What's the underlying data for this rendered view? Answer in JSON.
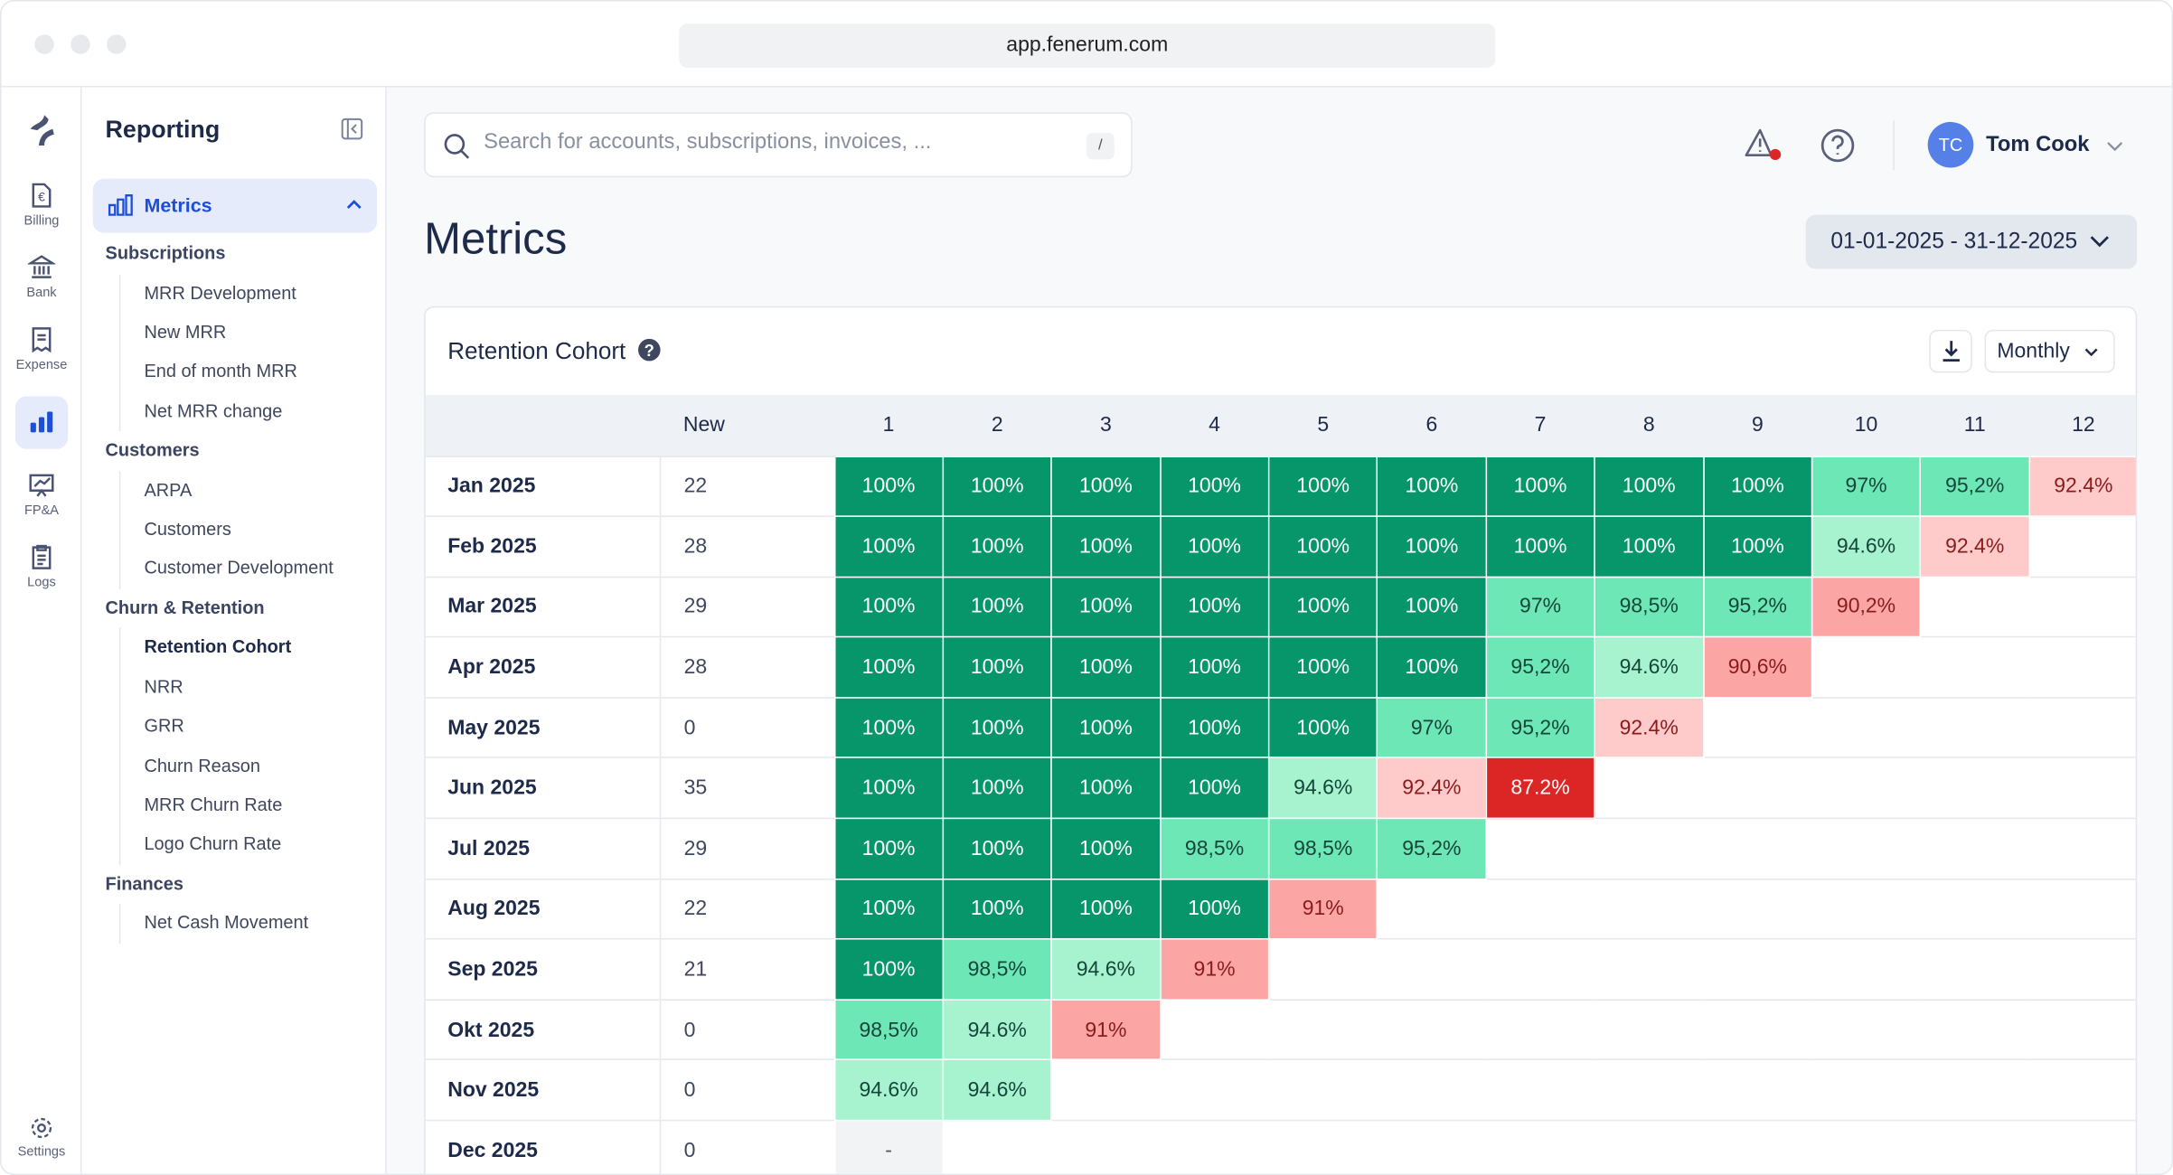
{
  "browser": {
    "url": "app.fenerum.com"
  },
  "rail": [
    {
      "label": "Billing",
      "icon": "receipt-euro-icon"
    },
    {
      "label": "Bank",
      "icon": "bank-icon"
    },
    {
      "label": "Expense",
      "icon": "expense-receipt-icon"
    },
    {
      "label": "",
      "icon": "bar-chart-icon",
      "active": true
    },
    {
      "label": "FP&A",
      "icon": "presentation-chart-icon"
    },
    {
      "label": "Logs",
      "icon": "clipboard-list-icon"
    },
    {
      "label": "Settings",
      "icon": "gear-icon"
    }
  ],
  "sidebar": {
    "title": "Reporting",
    "section": "Metrics",
    "groups": [
      {
        "label": "Subscriptions",
        "items": [
          "MRR Development",
          "New MRR",
          "End of month MRR",
          "Net MRR change"
        ]
      },
      {
        "label": "Customers",
        "items": [
          "ARPA",
          "Customers",
          "Customer Development"
        ]
      },
      {
        "label": "Churn & Retention",
        "items": [
          "Retention Cohort",
          "NRR",
          "GRR",
          "Churn Reason",
          "MRR Churn Rate",
          "Logo Churn Rate"
        ]
      },
      {
        "label": "Finances",
        "items": [
          "Net Cash Movement"
        ]
      }
    ],
    "current": "Retention Cohort"
  },
  "search": {
    "placeholder": "Search for accounts, subscriptions, invoices, ...",
    "shortcut": "/"
  },
  "user": {
    "initials": "TC",
    "name": "Tom Cook"
  },
  "page": {
    "title": "Metrics",
    "date_range": "01-01-2025 - 31-12-2025"
  },
  "cohort": {
    "title": "Retention Cohort",
    "period": "Monthly",
    "colors": {
      "full": "#069669",
      "high": "#6ee7b7",
      "mid": "#a7f3d0",
      "low": "#fecaca",
      "lower": "#fca5a5",
      "critical": "#dc2626",
      "empty": "#f1f3f5"
    },
    "headers": [
      "",
      "New",
      "1",
      "2",
      "3",
      "4",
      "5",
      "6",
      "7",
      "8",
      "9",
      "10",
      "11",
      "12"
    ],
    "rows": [
      {
        "month": "Jan 2025",
        "new": "22",
        "cells": [
          "100%",
          "100%",
          "100%",
          "100%",
          "100%",
          "100%",
          "100%",
          "100%",
          "100%",
          "97%",
          "95,2%",
          "92.4%"
        ]
      },
      {
        "month": "Feb 2025",
        "new": "28",
        "cells": [
          "100%",
          "100%",
          "100%",
          "100%",
          "100%",
          "100%",
          "100%",
          "100%",
          "100%",
          "94.6%",
          "92.4%"
        ]
      },
      {
        "month": "Mar 2025",
        "new": "29",
        "cells": [
          "100%",
          "100%",
          "100%",
          "100%",
          "100%",
          "100%",
          "97%",
          "98,5%",
          "95,2%",
          "90,2%"
        ]
      },
      {
        "month": "Apr 2025",
        "new": "28",
        "cells": [
          "100%",
          "100%",
          "100%",
          "100%",
          "100%",
          "100%",
          "95,2%",
          "94.6%",
          "90,6%"
        ]
      },
      {
        "month": "May 2025",
        "new": "0",
        "cells": [
          "100%",
          "100%",
          "100%",
          "100%",
          "100%",
          "97%",
          "95,2%",
          "92.4%"
        ]
      },
      {
        "month": "Jun 2025",
        "new": "35",
        "cells": [
          "100%",
          "100%",
          "100%",
          "100%",
          "94.6%",
          "92.4%",
          "87.2%"
        ]
      },
      {
        "month": "Jul 2025",
        "new": "29",
        "cells": [
          "100%",
          "100%",
          "100%",
          "98,5%",
          "98,5%",
          "95,2%"
        ]
      },
      {
        "month": "Aug 2025",
        "new": "22",
        "cells": [
          "100%",
          "100%",
          "100%",
          "100%",
          "91%"
        ]
      },
      {
        "month": "Sep 2025",
        "new": "21",
        "cells": [
          "100%",
          "98,5%",
          "94.6%",
          "91%"
        ]
      },
      {
        "month": "Okt 2025",
        "new": "0",
        "cells": [
          "98,5%",
          "94.6%",
          "91%"
        ]
      },
      {
        "month": "Nov 2025",
        "new": "0",
        "cells": [
          "94.6%",
          "94.6%"
        ]
      },
      {
        "month": "Dec 2025",
        "new": "0",
        "cells": [
          "-"
        ]
      }
    ]
  }
}
